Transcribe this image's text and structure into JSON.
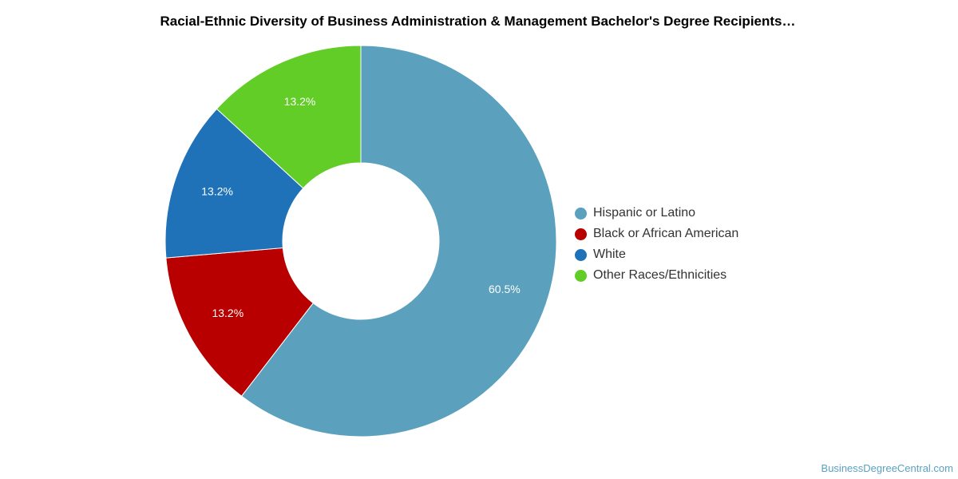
{
  "title": "Racial-Ethnic Diversity of Business Administration & Management Bachelor's Degree Recipients…",
  "watermark": "BusinessDegreeCentral.com",
  "chart_data": {
    "type": "pie",
    "style": "donut",
    "title": "Racial-Ethnic Diversity of Business Administration & Management Bachelor's Degree Recipients…",
    "legend_position": "right",
    "slices": [
      {
        "name": "Hispanic or Latino",
        "value": 60.5,
        "label": "60.5%",
        "color": "#5ba1be"
      },
      {
        "name": "Black or African American",
        "value": 13.2,
        "label": "13.2%",
        "color": "#b80000"
      },
      {
        "name": "White",
        "value": 13.2,
        "label": "13.2%",
        "color": "#1f72b8"
      },
      {
        "name": "Other Races/Ethnicities",
        "value": 13.2,
        "label": "13.2%",
        "color": "#62cd26"
      }
    ]
  }
}
